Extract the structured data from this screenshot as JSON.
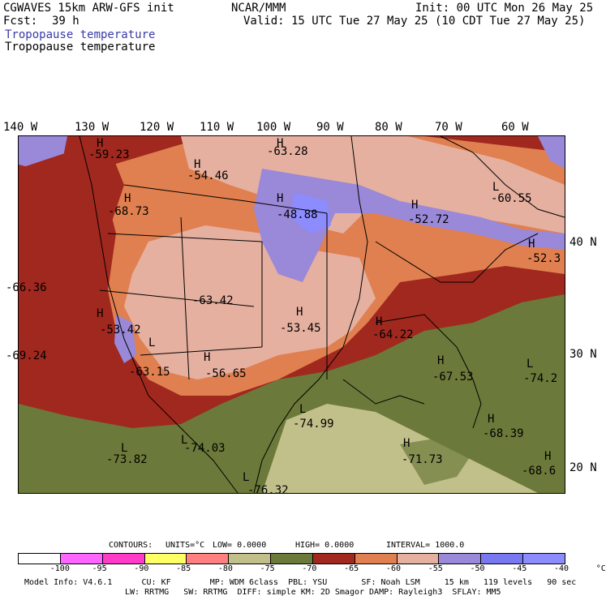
{
  "header": {
    "model": "CGWAVES 15km ARW-GFS init",
    "org": "NCAR/MMM",
    "init": "Init: 00 UTC Mon 26 May 25",
    "fcst_label": "Fcst:",
    "fcst_value": "39 h",
    "valid": "Valid: 15 UTC Tue 27 May 25 (10 CDT Tue 27 May 25)",
    "field_line1": "Tropopause temperature",
    "field_line2": "Tropopause temperature"
  },
  "lon_labels": [
    "140 W",
    "130 W",
    "120 W",
    "110 W",
    "100 W",
    "90 W",
    "80 W",
    "70 W",
    "60 W"
  ],
  "lat_labels": [
    "40 N",
    "30 N",
    "20 N"
  ],
  "map_labels": {
    "h_markers": [
      "H",
      "H",
      "H",
      "H",
      "H",
      "H",
      "H",
      "H",
      "H",
      "H",
      "H",
      "H",
      "H",
      "H",
      "H"
    ],
    "l_markers": [
      "L",
      "L",
      "L",
      "L",
      "L",
      "L",
      "L"
    ],
    "values": [
      "-59.23",
      "-63.28",
      "-54.46",
      "-48.88",
      "-52.72",
      "-60.55",
      "-52.3",
      "-68.73",
      "-66.36",
      "-63.42",
      "-53.42",
      "-53.45",
      "-64.22",
      "-69.24",
      "-63.15",
      "-56.65",
      "-67.53",
      "-74.2",
      "-74.99",
      "-68.39",
      "-74.03",
      "-71.73",
      "-73.82",
      "-68.6",
      "-76.32"
    ]
  },
  "contours": {
    "label": "CONTOURS:",
    "units": "UNITS=°C",
    "low": "LOW= 0.0000",
    "high": "HIGH= 0.0000",
    "interval": "INTERVAL= 1000.0"
  },
  "legend": {
    "colors": [
      "#ffffff",
      "#ff66ff",
      "#ff3bc8",
      "#ffff66",
      "#ff8080",
      "#c2c08a",
      "#6b7a3a",
      "#a0281e",
      "#e08050",
      "#e6b0a0",
      "#9a88d8",
      "#7878f0",
      "#8c8cff"
    ],
    "ticks": [
      "-100",
      "-95",
      "-90",
      "-85",
      "-80",
      "-75",
      "-70",
      "-65",
      "-60",
      "-55",
      "-50",
      "-45",
      "-40",
      "°C"
    ]
  },
  "footer": {
    "line1": "Model Info: V4.6.1      CU: KF        MP: WDM 6class  PBL: YSU       SF: Noah LSM     15 km   119 levels   90 sec",
    "line2": "LW: RRTMG   SW: RRTMG  DIFF: simple KM: 2D Smagor DAMP: Rayleigh3  SFLAY: MM5"
  }
}
